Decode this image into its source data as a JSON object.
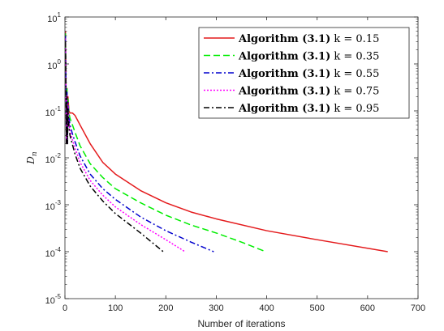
{
  "chart_data": {
    "type": "line",
    "xlabel": "Number of iterations",
    "ylabel": "D",
    "ylabel_subscript": "n",
    "x_scale": "linear",
    "y_scale": "log",
    "xlim": [
      0,
      700
    ],
    "ylim": [
      1e-05,
      10
    ],
    "x_ticks": [
      0,
      100,
      200,
      300,
      400,
      500,
      600,
      700
    ],
    "y_ticks": [
      {
        "value": 1e-05,
        "base": "10",
        "exp": "-5"
      },
      {
        "value": 0.0001,
        "base": "10",
        "exp": "-4"
      },
      {
        "value": 0.001,
        "base": "10",
        "exp": "-3"
      },
      {
        "value": 0.01,
        "base": "10",
        "exp": "-2"
      },
      {
        "value": 0.1,
        "base": "10",
        "exp": "-1"
      },
      {
        "value": 1,
        "base": "10",
        "exp": "0"
      },
      {
        "value": 10,
        "base": "10",
        "exp": "1"
      }
    ],
    "grid": false,
    "legend_position": "top-right",
    "series": [
      {
        "algo": "Algorithm (3.1)",
        "param": "k = 0.15",
        "color": "#e41a1c",
        "dash": "solid",
        "x": [
          1,
          2,
          3,
          4,
          5,
          6,
          8,
          10,
          15,
          20,
          30,
          50,
          75,
          100,
          150,
          200,
          250,
          300,
          400,
          500,
          640
        ],
        "y": [
          5,
          0.5,
          0.02,
          0.3,
          0.02,
          0.2,
          0.1,
          0.09,
          0.09,
          0.08,
          0.05,
          0.02,
          0.008,
          0.0045,
          0.002,
          0.0011,
          0.0007,
          0.0005,
          0.00028,
          0.00018,
          0.0001
        ]
      },
      {
        "algo": "Algorithm (3.1)",
        "param": "k = 0.35",
        "color": "#00ee00",
        "dash": "dashed",
        "x": [
          1,
          2,
          3,
          4,
          5,
          6,
          8,
          10,
          15,
          20,
          30,
          50,
          75,
          100,
          150,
          200,
          250,
          300,
          350,
          398
        ],
        "y": [
          4.5,
          0.4,
          0.02,
          0.3,
          0.02,
          0.18,
          0.09,
          0.07,
          0.05,
          0.035,
          0.018,
          0.0075,
          0.0038,
          0.0022,
          0.0011,
          0.0006,
          0.00037,
          0.00025,
          0.00016,
          0.0001
        ]
      },
      {
        "algo": "Algorithm (3.1)",
        "param": "k = 0.55",
        "color": "#0000cd",
        "dash": "dashdot",
        "x": [
          1,
          2,
          3,
          4,
          5,
          6,
          8,
          10,
          15,
          20,
          30,
          50,
          75,
          100,
          150,
          200,
          250,
          295
        ],
        "y": [
          4,
          0.35,
          0.02,
          0.25,
          0.02,
          0.15,
          0.07,
          0.05,
          0.032,
          0.022,
          0.011,
          0.0045,
          0.0022,
          0.0013,
          0.00055,
          0.00028,
          0.00016,
          0.0001
        ]
      },
      {
        "algo": "Algorithm (3.1)",
        "param": "k = 0.75",
        "color": "#ff00ff",
        "dash": "dotted",
        "x": [
          1,
          2,
          3,
          4,
          5,
          6,
          8,
          10,
          15,
          20,
          30,
          50,
          75,
          100,
          150,
          200,
          238
        ],
        "y": [
          3.5,
          0.3,
          0.02,
          0.22,
          0.02,
          0.13,
          0.055,
          0.038,
          0.024,
          0.016,
          0.008,
          0.0033,
          0.0016,
          0.0009,
          0.00038,
          0.00018,
          0.0001
        ]
      },
      {
        "algo": "Algorithm (3.1)",
        "param": "k = 0.95",
        "color": "#000000",
        "dash": "dashdot",
        "x": [
          1,
          2,
          3,
          4,
          5,
          6,
          8,
          10,
          15,
          20,
          30,
          50,
          75,
          100,
          150,
          195
        ],
        "y": [
          3,
          0.25,
          0.02,
          0.2,
          0.02,
          0.11,
          0.045,
          0.03,
          0.019,
          0.012,
          0.006,
          0.0025,
          0.0012,
          0.00065,
          0.00025,
          0.0001
        ]
      }
    ]
  }
}
